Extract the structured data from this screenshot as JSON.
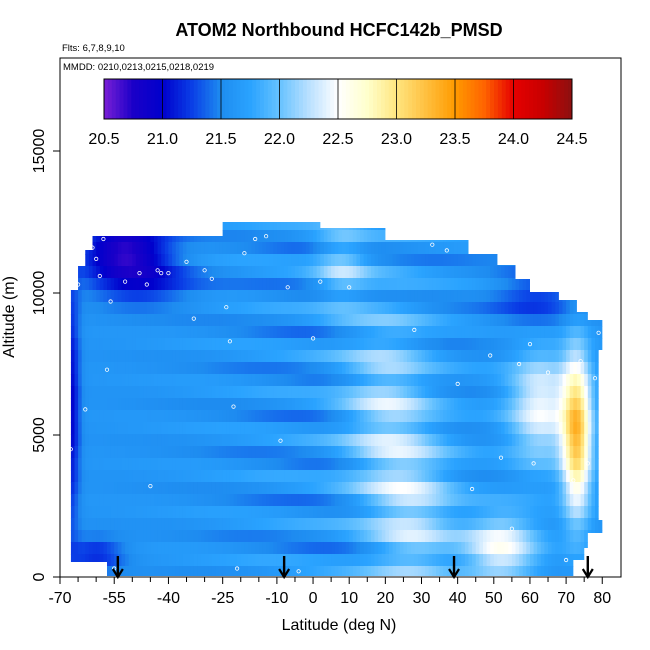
{
  "chart_data": {
    "type": "heatmap",
    "title": "ATOM2 Northbound HCFC142b_PMSD",
    "subtitle_flights": "Flts: 6,7,8,9,10",
    "subtitle_dates": "MMDD: 0210,0213,0215,0218,0219",
    "xlabel": "Latitude (deg N)",
    "ylabel": "Altitude (m)",
    "xlim": [
      -70,
      84
    ],
    "ylim": [
      0,
      18000
    ],
    "x_ticks": [
      -70,
      -55,
      -40,
      -25,
      -10,
      0,
      10,
      20,
      30,
      40,
      50,
      60,
      70,
      80
    ],
    "x_minor_ticks": [
      -65,
      -60,
      -50,
      -45,
      -35,
      -30,
      -20,
      -15,
      -5,
      5,
      15,
      25,
      35,
      45,
      55,
      65,
      75
    ],
    "y_ticks": [
      0,
      5000,
      10000,
      15000
    ],
    "colorbar": {
      "labels": [
        "20.5",
        "21.0",
        "21.5",
        "22.0",
        "22.5",
        "23.0",
        "23.5",
        "24.0",
        "24.5"
      ],
      "range": [
        20.5,
        24.5
      ],
      "colors": [
        "#7a1fd6",
        "#1a00c8",
        "#0000cc",
        "#0a3ee6",
        "#1e8cf0",
        "#2aa3ff",
        "#66c2ff",
        "#b9e0ff",
        "#ffffff",
        "#ffffcc",
        "#ffe680",
        "#ffc040",
        "#ff9a00",
        "#ff6400",
        "#e60000",
        "#c80000",
        "#8c1010"
      ]
    },
    "flight_boundary_markers_lat": [
      -54,
      -8,
      39,
      76
    ],
    "x_range_of_data": [
      -67,
      80
    ],
    "y_range_of_data": [
      0,
      13000
    ],
    "sample_points": [
      {
        "x": -67,
        "y": 4500
      },
      {
        "x": -65,
        "y": 10300
      },
      {
        "x": -63,
        "y": 5900
      },
      {
        "x": -61,
        "y": 11600
      },
      {
        "x": -60,
        "y": 11200
      },
      {
        "x": -59,
        "y": 10600
      },
      {
        "x": -58,
        "y": 11900
      },
      {
        "x": -57,
        "y": 7300
      },
      {
        "x": -56,
        "y": 9700
      },
      {
        "x": -55,
        "y": 300
      },
      {
        "x": -52,
        "y": 10400
      },
      {
        "x": -48,
        "y": 10700
      },
      {
        "x": -46,
        "y": 10300
      },
      {
        "x": -45,
        "y": 3200
      },
      {
        "x": -43,
        "y": 10800
      },
      {
        "x": -42,
        "y": 10700
      },
      {
        "x": -40,
        "y": 10700
      },
      {
        "x": -35,
        "y": 11100
      },
      {
        "x": -33,
        "y": 9100
      },
      {
        "x": -30,
        "y": 10800
      },
      {
        "x": -28,
        "y": 10500
      },
      {
        "x": -24,
        "y": 9500
      },
      {
        "x": -23,
        "y": 8300
      },
      {
        "x": -22,
        "y": 6000
      },
      {
        "x": -21,
        "y": 300
      },
      {
        "x": -19,
        "y": 11400
      },
      {
        "x": -16,
        "y": 11900
      },
      {
        "x": -13,
        "y": 12000
      },
      {
        "x": -9,
        "y": 4800
      },
      {
        "x": -7,
        "y": 10200
      },
      {
        "x": -4,
        "y": 200
      },
      {
        "x": 0,
        "y": 8400
      },
      {
        "x": 2,
        "y": 10400
      },
      {
        "x": 10,
        "y": 10200
      },
      {
        "x": 28,
        "y": 8700
      },
      {
        "x": 33,
        "y": 11700
      },
      {
        "x": 37,
        "y": 11500
      },
      {
        "x": 40,
        "y": 6800
      },
      {
        "x": 44,
        "y": 3100
      },
      {
        "x": 49,
        "y": 7800
      },
      {
        "x": 52,
        "y": 4200
      },
      {
        "x": 55,
        "y": 1700
      },
      {
        "x": 57,
        "y": 7500
      },
      {
        "x": 60,
        "y": 8200
      },
      {
        "x": 61,
        "y": 4000
      },
      {
        "x": 65,
        "y": 7200
      },
      {
        "x": 70,
        "y": 600
      },
      {
        "x": 72,
        "y": 3400
      },
      {
        "x": 74,
        "y": 7600
      },
      {
        "x": 76,
        "y": 4000
      },
      {
        "x": 78,
        "y": 7000
      },
      {
        "x": 79,
        "y": 8600
      }
    ]
  }
}
